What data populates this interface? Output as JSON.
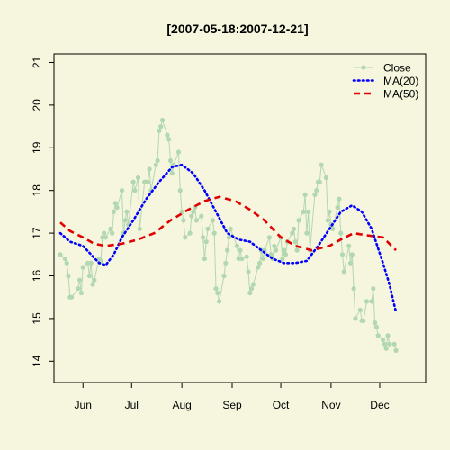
{
  "chart_data": {
    "type": "line",
    "title": "[2007-05-18:2007-12-21]",
    "xlabel": "",
    "ylabel": "",
    "x_start": "2007-05-18",
    "x_end": "2007-12-21",
    "ylim": [
      13.5,
      21.2
    ],
    "yticks": [
      14,
      15,
      16,
      17,
      18,
      19,
      20,
      21
    ],
    "xticks": [
      {
        "label": "Jun",
        "date": "2007-06-01"
      },
      {
        "label": "Jul",
        "date": "2007-07-01"
      },
      {
        "label": "Aug",
        "date": "2007-08-01"
      },
      {
        "label": "Sep",
        "date": "2007-09-01"
      },
      {
        "label": "Oct",
        "date": "2007-10-01"
      },
      {
        "label": "Nov",
        "date": "2007-11-01"
      },
      {
        "label": "Dec",
        "date": "2007-12-01"
      }
    ],
    "grid": false,
    "legend_position": "top-right",
    "colors": {
      "close": "#B2D8B0",
      "ma20": "#0000FF",
      "ma50": "#E00000",
      "background": "#F6F5DD"
    },
    "series": [
      {
        "name": "Close",
        "style": "line-points",
        "points": [
          [
            "2007-05-18",
            16.5
          ],
          [
            "2007-05-21",
            16.4
          ],
          [
            "2007-05-22",
            16.3
          ],
          [
            "2007-05-23",
            16.0
          ],
          [
            "2007-05-24",
            15.5
          ],
          [
            "2007-05-25",
            15.5
          ],
          [
            "2007-05-29",
            15.7
          ],
          [
            "2007-05-30",
            15.9
          ],
          [
            "2007-05-31",
            15.6
          ],
          [
            "2007-06-01",
            16.2
          ],
          [
            "2007-06-04",
            16.3
          ],
          [
            "2007-06-05",
            16.0
          ],
          [
            "2007-06-06",
            16.3
          ],
          [
            "2007-06-07",
            15.8
          ],
          [
            "2007-06-08",
            15.9
          ],
          [
            "2007-06-11",
            16.4
          ],
          [
            "2007-06-12",
            16.35
          ],
          [
            "2007-06-13",
            16.9
          ],
          [
            "2007-06-14",
            17.0
          ],
          [
            "2007-06-15",
            16.9
          ],
          [
            "2007-06-18",
            17.1
          ],
          [
            "2007-06-19",
            17.0
          ],
          [
            "2007-06-20",
            17.5
          ],
          [
            "2007-06-21",
            17.7
          ],
          [
            "2007-06-22",
            17.6
          ],
          [
            "2007-06-25",
            18.0
          ],
          [
            "2007-06-26",
            17.0
          ],
          [
            "2007-06-27",
            17.3
          ],
          [
            "2007-06-28",
            17.5
          ],
          [
            "2007-06-29",
            17.2
          ],
          [
            "2007-07-02",
            18.2
          ],
          [
            "2007-07-03",
            18.0
          ],
          [
            "2007-07-05",
            18.3
          ],
          [
            "2007-07-06",
            17.1
          ],
          [
            "2007-07-09",
            18.2
          ],
          [
            "2007-07-10",
            18.2
          ],
          [
            "2007-07-11",
            18.2
          ],
          [
            "2007-07-12",
            18.5
          ],
          [
            "2007-07-13",
            18.0
          ],
          [
            "2007-07-16",
            18.6
          ],
          [
            "2007-07-17",
            18.7
          ],
          [
            "2007-07-18",
            19.4
          ],
          [
            "2007-07-19",
            19.5
          ],
          [
            "2007-07-20",
            19.65
          ],
          [
            "2007-07-23",
            19.3
          ],
          [
            "2007-07-24",
            19.2
          ],
          [
            "2007-07-25",
            18.7
          ],
          [
            "2007-07-26",
            18.4
          ],
          [
            "2007-07-27",
            18.6
          ],
          [
            "2007-07-30",
            18.9
          ],
          [
            "2007-07-31",
            18.0
          ],
          [
            "2007-08-01",
            17.5
          ],
          [
            "2007-08-02",
            17.3
          ],
          [
            "2007-08-03",
            16.9
          ],
          [
            "2007-08-06",
            17.0
          ],
          [
            "2007-08-07",
            17.4
          ],
          [
            "2007-08-08",
            17.5
          ],
          [
            "2007-08-09",
            17.6
          ],
          [
            "2007-08-10",
            17.3
          ],
          [
            "2007-08-13",
            17.4
          ],
          [
            "2007-08-14",
            16.9
          ],
          [
            "2007-08-15",
            16.4
          ],
          [
            "2007-08-16",
            16.8
          ],
          [
            "2007-08-17",
            17.1
          ],
          [
            "2007-08-20",
            17.3
          ],
          [
            "2007-08-21",
            17.0
          ],
          [
            "2007-08-22",
            15.7
          ],
          [
            "2007-08-23",
            15.6
          ],
          [
            "2007-08-24",
            15.4
          ],
          [
            "2007-08-27",
            16.0
          ],
          [
            "2007-08-28",
            16.3
          ],
          [
            "2007-08-29",
            16.6
          ],
          [
            "2007-08-30",
            16.9
          ],
          [
            "2007-08-31",
            17.1
          ],
          [
            "2007-09-04",
            16.7
          ],
          [
            "2007-09-05",
            16.4
          ],
          [
            "2007-09-06",
            16.6
          ],
          [
            "2007-09-07",
            16.4
          ],
          [
            "2007-09-10",
            16.45
          ],
          [
            "2007-09-11",
            16.1
          ],
          [
            "2007-09-12",
            15.6
          ],
          [
            "2007-09-13",
            15.7
          ],
          [
            "2007-09-14",
            15.8
          ],
          [
            "2007-09-17",
            16.2
          ],
          [
            "2007-09-18",
            16.3
          ],
          [
            "2007-09-19",
            16.6
          ],
          [
            "2007-09-20",
            16.4
          ],
          [
            "2007-09-21",
            16.6
          ],
          [
            "2007-09-24",
            16.9
          ],
          [
            "2007-09-25",
            16.5
          ],
          [
            "2007-09-26",
            16.4
          ],
          [
            "2007-09-27",
            16.7
          ],
          [
            "2007-09-28",
            16.6
          ],
          [
            "2007-10-01",
            16.9
          ],
          [
            "2007-10-02",
            16.4
          ],
          [
            "2007-10-03",
            16.6
          ],
          [
            "2007-10-04",
            16.5
          ],
          [
            "2007-10-05",
            16.8
          ],
          [
            "2007-10-08",
            17.0
          ],
          [
            "2007-10-09",
            17.1
          ],
          [
            "2007-10-10",
            16.8
          ],
          [
            "2007-10-11",
            16.6
          ],
          [
            "2007-10-12",
            17.3
          ],
          [
            "2007-10-15",
            17.5
          ],
          [
            "2007-10-16",
            17.9
          ],
          [
            "2007-10-17",
            17.0
          ],
          [
            "2007-10-18",
            17.5
          ],
          [
            "2007-10-19",
            16.6
          ],
          [
            "2007-10-22",
            17.9
          ],
          [
            "2007-10-23",
            18.0
          ],
          [
            "2007-10-24",
            18.2
          ],
          [
            "2007-10-25",
            18.2
          ],
          [
            "2007-10-26",
            18.6
          ],
          [
            "2007-10-29",
            18.3
          ],
          [
            "2007-10-30",
            17.3
          ],
          [
            "2007-10-31",
            17.5
          ],
          [
            "2007-11-01",
            17.2
          ],
          [
            "2007-11-02",
            17.1
          ],
          [
            "2007-11-05",
            17.6
          ],
          [
            "2007-11-06",
            17.8
          ],
          [
            "2007-11-07",
            17.0
          ],
          [
            "2007-11-08",
            16.5
          ],
          [
            "2007-11-09",
            16.1
          ],
          [
            "2007-11-12",
            16.7
          ],
          [
            "2007-11-13",
            16.3
          ],
          [
            "2007-11-14",
            16.5
          ],
          [
            "2007-11-15",
            15.7
          ],
          [
            "2007-11-16",
            15.0
          ],
          [
            "2007-11-19",
            15.2
          ],
          [
            "2007-11-20",
            14.95
          ],
          [
            "2007-11-21",
            14.95
          ],
          [
            "2007-11-23",
            15.4
          ],
          [
            "2007-11-26",
            15.4
          ],
          [
            "2007-11-27",
            15.7
          ],
          [
            "2007-11-28",
            14.9
          ],
          [
            "2007-11-29",
            14.8
          ],
          [
            "2007-11-30",
            14.6
          ],
          [
            "2007-12-03",
            14.5
          ],
          [
            "2007-12-04",
            14.4
          ],
          [
            "2007-12-05",
            14.3
          ],
          [
            "2007-12-06",
            14.6
          ],
          [
            "2007-12-07",
            14.4
          ],
          [
            "2007-12-10",
            14.4
          ],
          [
            "2007-12-11",
            14.25
          ]
        ]
      },
      {
        "name": "MA(20)",
        "style": "dotted",
        "points": [
          [
            "2007-05-18",
            17.0
          ],
          [
            "2007-05-24",
            16.8
          ],
          [
            "2007-06-01",
            16.7
          ],
          [
            "2007-06-06",
            16.5
          ],
          [
            "2007-06-11",
            16.3
          ],
          [
            "2007-06-15",
            16.25
          ],
          [
            "2007-06-20",
            16.5
          ],
          [
            "2007-06-25",
            16.9
          ],
          [
            "2007-07-02",
            17.3
          ],
          [
            "2007-07-10",
            17.8
          ],
          [
            "2007-07-18",
            18.2
          ],
          [
            "2007-07-26",
            18.55
          ],
          [
            "2007-08-01",
            18.6
          ],
          [
            "2007-08-08",
            18.4
          ],
          [
            "2007-08-15",
            18.0
          ],
          [
            "2007-08-22",
            17.5
          ],
          [
            "2007-08-29",
            17.0
          ],
          [
            "2007-09-05",
            16.85
          ],
          [
            "2007-09-12",
            16.8
          ],
          [
            "2007-09-19",
            16.6
          ],
          [
            "2007-09-26",
            16.4
          ],
          [
            "2007-10-03",
            16.3
          ],
          [
            "2007-10-10",
            16.3
          ],
          [
            "2007-10-17",
            16.35
          ],
          [
            "2007-10-24",
            16.7
          ],
          [
            "2007-10-31",
            17.1
          ],
          [
            "2007-11-07",
            17.5
          ],
          [
            "2007-11-14",
            17.65
          ],
          [
            "2007-11-20",
            17.5
          ],
          [
            "2007-11-26",
            17.1
          ],
          [
            "2007-12-03",
            16.3
          ],
          [
            "2007-12-07",
            15.8
          ],
          [
            "2007-12-11",
            15.15
          ]
        ]
      },
      {
        "name": "MA(50)",
        "style": "dashed",
        "points": [
          [
            "2007-05-18",
            17.25
          ],
          [
            "2007-05-24",
            17.05
          ],
          [
            "2007-06-01",
            16.9
          ],
          [
            "2007-06-08",
            16.75
          ],
          [
            "2007-06-15",
            16.7
          ],
          [
            "2007-06-25",
            16.75
          ],
          [
            "2007-07-05",
            16.85
          ],
          [
            "2007-07-15",
            17.0
          ],
          [
            "2007-07-25",
            17.3
          ],
          [
            "2007-08-05",
            17.55
          ],
          [
            "2007-08-15",
            17.75
          ],
          [
            "2007-08-24",
            17.85
          ],
          [
            "2007-09-03",
            17.75
          ],
          [
            "2007-09-12",
            17.55
          ],
          [
            "2007-09-21",
            17.3
          ],
          [
            "2007-10-01",
            16.9
          ],
          [
            "2007-10-10",
            16.7
          ],
          [
            "2007-10-20",
            16.6
          ],
          [
            "2007-10-31",
            16.7
          ],
          [
            "2007-11-07",
            16.85
          ],
          [
            "2007-11-15",
            17.0
          ],
          [
            "2007-11-23",
            16.95
          ],
          [
            "2007-12-03",
            16.9
          ],
          [
            "2007-12-11",
            16.6
          ]
        ]
      }
    ]
  }
}
